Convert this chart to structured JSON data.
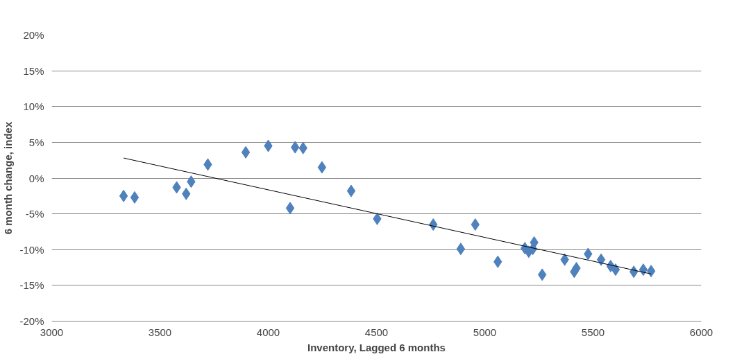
{
  "chart_data": {
    "type": "scatter",
    "xlabel": "Inventory, Lagged 6 months",
    "ylabel": "6 month change, index",
    "xlim": [
      3000,
      6000
    ],
    "xticks": [
      3000,
      3500,
      4000,
      4500,
      5000,
      5500,
      6000
    ],
    "ylim": [
      -20,
      20
    ],
    "yticks": [
      {
        "value": -20,
        "label": "-20%"
      },
      {
        "value": -15,
        "label": "-15%"
      },
      {
        "value": -10,
        "label": "-10%"
      },
      {
        "value": -5,
        "label": "-5%"
      },
      {
        "value": 0,
        "label": "0%"
      },
      {
        "value": 5,
        "label": "5%"
      },
      {
        "value": 10,
        "label": "10%"
      },
      {
        "value": 15,
        "label": "15%"
      },
      {
        "value": 20,
        "label": "20%"
      }
    ],
    "grid": "y",
    "series": [
      {
        "marker": "diamond",
        "color": "#4f81bd",
        "x": [
          3332,
          3383,
          3577,
          3621,
          3644,
          3721,
          3896,
          4000,
          4124,
          4161,
          4248,
          4101,
          4383,
          4503,
          4762,
          4956,
          4889,
          5060,
          5185,
          5203,
          5222,
          5228,
          5265,
          5369,
          5413,
          5423,
          5477,
          5537,
          5581,
          5604,
          5688,
          5732,
          5768
        ],
        "values": [
          -2.5,
          -2.7,
          -1.3,
          -2.2,
          -0.5,
          1.9,
          3.6,
          4.5,
          4.3,
          4.2,
          1.5,
          -4.2,
          -1.8,
          -5.7,
          -6.5,
          -6.5,
          -9.9,
          -11.7,
          -9.8,
          -10.3,
          -9.9,
          -9.0,
          -13.5,
          -11.4,
          -13.1,
          -12.6,
          -10.6,
          -11.4,
          -12.3,
          -12.8,
          -13.1,
          -12.8,
          -13.0
        ]
      },
      {
        "type": "line",
        "marker": "none",
        "color": "#000000",
        "x": [
          3332,
          5768
        ],
        "values": [
          2.8,
          -13.4
        ]
      }
    ]
  }
}
